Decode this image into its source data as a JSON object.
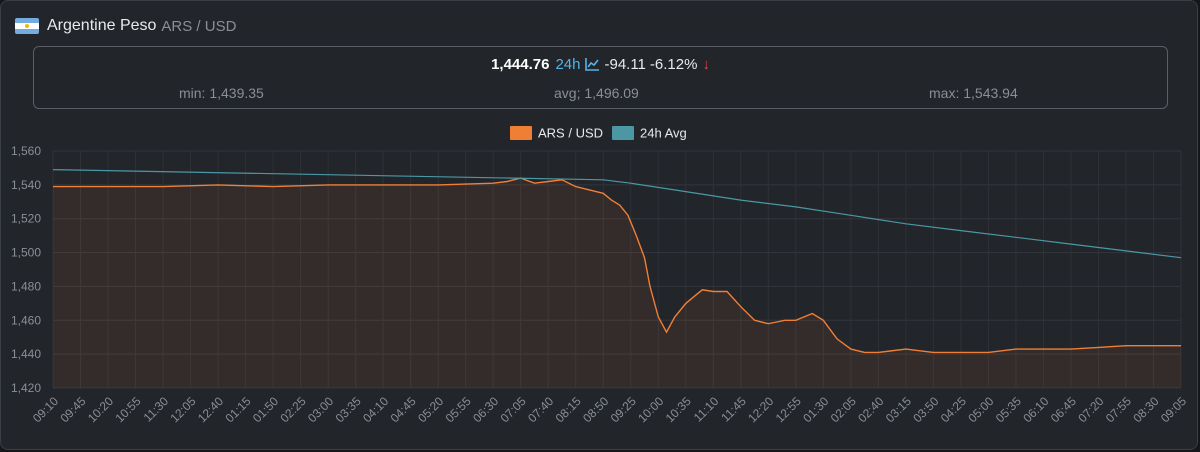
{
  "header": {
    "title": "Argentine Peso",
    "pair": "ARS / USD",
    "flag_icon": "argentina-flag-icon"
  },
  "stats": {
    "price": "1,444.76",
    "period": "24h",
    "change": "-94.11",
    "change_pct": "-6.12%",
    "trend_icon": "chart-line-icon",
    "direction_icon": "arrow-down-icon",
    "min": "min: 1,439.35",
    "avg": "avg; 1,496.09",
    "max": "max: 1,543.94"
  },
  "colors": {
    "ars_line": "#f07f36",
    "avg_line": "#4b98a4",
    "panel": "#22252a",
    "accent_blue": "#55b3e5",
    "down_red": "#e0424b"
  },
  "chart_data": {
    "type": "line",
    "legend": [
      "ARS / USD",
      "24h Avg"
    ],
    "legend_position": "top-center",
    "grid": true,
    "ylim": [
      1420,
      1560
    ],
    "yticks": [
      "1,420",
      "1,440",
      "1,460",
      "1,480",
      "1,500",
      "1,520",
      "1,540",
      "1,560"
    ],
    "xticks": [
      "09:10",
      "09:45",
      "10:20",
      "10:55",
      "11:30",
      "12:05",
      "12:40",
      "01:15",
      "01:50",
      "02:25",
      "03:00",
      "03:35",
      "04:10",
      "04:45",
      "05:20",
      "05:55",
      "06:30",
      "07:05",
      "07:40",
      "08:15",
      "08:50",
      "09:25",
      "10:00",
      "10:35",
      "11:10",
      "11:45",
      "12:20",
      "12:55",
      "01:30",
      "02:05",
      "02:40",
      "03:15",
      "03:50",
      "04:25",
      "05:00",
      "05:35",
      "06:10",
      "06:45",
      "07:20",
      "07:55",
      "08:30",
      "09:05"
    ],
    "series": [
      {
        "name": "ARS / USD",
        "x": [
          0,
          2,
          4,
          6,
          8,
          10,
          12,
          14,
          16,
          16.5,
          17,
          17.5,
          18,
          18.5,
          19,
          19.5,
          20,
          20.3,
          20.6,
          20.9,
          21.2,
          21.5,
          21.7,
          22,
          22.3,
          22.6,
          23,
          23.3,
          23.6,
          24,
          24.5,
          25,
          25.5,
          26,
          26.3,
          26.6,
          27,
          27.3,
          27.6,
          28,
          28.5,
          29,
          29.5,
          30,
          31,
          32,
          33,
          34,
          35,
          36,
          37,
          38,
          39,
          40,
          41
        ],
        "values": [
          1539,
          1539,
          1539,
          1540,
          1539,
          1540,
          1540,
          1540,
          1541,
          1542,
          1544,
          1541,
          1542,
          1543,
          1539,
          1537,
          1535,
          1531,
          1528,
          1522,
          1510,
          1497,
          1480,
          1462,
          1453,
          1462,
          1470,
          1474,
          1478,
          1477,
          1477,
          1468,
          1460,
          1458,
          1459,
          1460,
          1460,
          1462,
          1464,
          1460,
          1449,
          1443,
          1441,
          1441,
          1443,
          1441,
          1441,
          1441,
          1443,
          1443,
          1443,
          1444,
          1445,
          1445,
          1445
        ]
      },
      {
        "name": "24h Avg",
        "x": [
          0,
          10,
          20,
          21,
          23,
          25,
          27,
          29,
          31,
          33,
          35,
          37,
          39,
          41
        ],
        "values": [
          1549,
          1546,
          1543,
          1541,
          1536,
          1531,
          1527,
          1522,
          1517,
          1513,
          1509,
          1505,
          1501,
          1497
        ]
      }
    ]
  }
}
